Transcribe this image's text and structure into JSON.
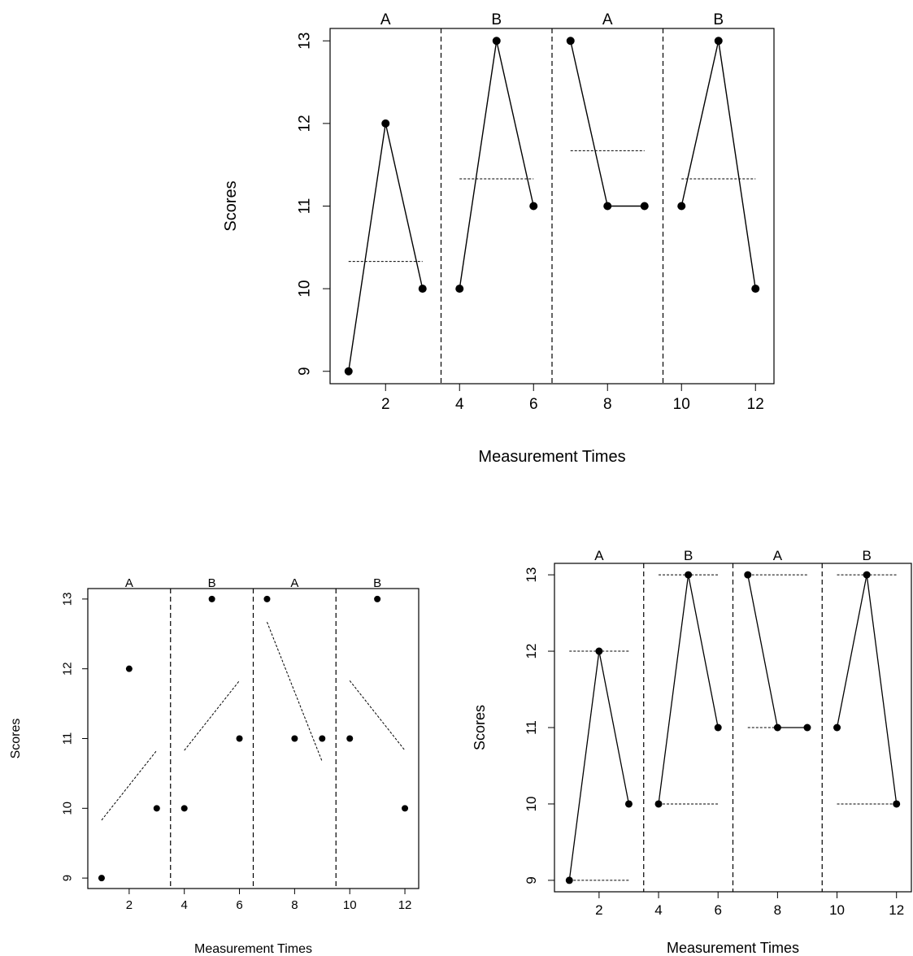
{
  "chart_data": [
    {
      "type": "line",
      "panel": "mean-lines",
      "xlabel": "Measurement Times",
      "ylabel": "Scores",
      "xlim": [
        0.5,
        12.5
      ],
      "ylim": [
        8.85,
        13.15
      ],
      "x_ticks": [
        2,
        4,
        6,
        8,
        10,
        12
      ],
      "y_ticks": [
        9,
        10,
        11,
        12,
        13
      ],
      "phase_labels": [
        "A",
        "B",
        "A",
        "B"
      ],
      "phase_boundaries": [
        3.5,
        6.5,
        9.5
      ],
      "x": [
        1,
        2,
        3,
        4,
        5,
        6,
        7,
        8,
        9,
        10,
        11,
        12
      ],
      "y": [
        9,
        12,
        10,
        10,
        13,
        11,
        13,
        11,
        11,
        11,
        13,
        10
      ],
      "show_lines": true,
      "reference_lines": [
        {
          "x": [
            1,
            3
          ],
          "y": [
            10.33,
            10.33
          ]
        },
        {
          "x": [
            4,
            6
          ],
          "y": [
            11.33,
            11.33
          ]
        },
        {
          "x": [
            7,
            9
          ],
          "y": [
            11.67,
            11.67
          ]
        },
        {
          "x": [
            10,
            12
          ],
          "y": [
            11.33,
            11.33
          ]
        }
      ]
    },
    {
      "type": "scatter",
      "panel": "trend-lines",
      "xlabel": "Measurement Times",
      "ylabel": "Scores",
      "xlim": [
        0.5,
        12.5
      ],
      "ylim": [
        8.85,
        13.15
      ],
      "x_ticks": [
        2,
        4,
        6,
        8,
        10,
        12
      ],
      "y_ticks": [
        9,
        10,
        11,
        12,
        13
      ],
      "phase_labels": [
        "A",
        "B",
        "A",
        "B"
      ],
      "phase_boundaries": [
        3.5,
        6.5,
        9.5
      ],
      "x": [
        1,
        2,
        3,
        4,
        5,
        6,
        7,
        8,
        9,
        10,
        11,
        12
      ],
      "y": [
        9,
        12,
        10,
        10,
        13,
        11,
        13,
        11,
        11,
        11,
        13,
        10
      ],
      "show_lines": false,
      "reference_lines": [
        {
          "x": [
            1,
            3
          ],
          "y": [
            9.83,
            10.83
          ]
        },
        {
          "x": [
            4,
            6
          ],
          "y": [
            10.83,
            11.83
          ]
        },
        {
          "x": [
            7,
            9
          ],
          "y": [
            12.67,
            10.67
          ]
        },
        {
          "x": [
            10,
            12
          ],
          "y": [
            11.83,
            10.83
          ]
        }
      ]
    },
    {
      "type": "line",
      "panel": "range-lines",
      "xlabel": "Measurement Times",
      "ylabel": "Scores",
      "xlim": [
        0.5,
        12.5
      ],
      "ylim": [
        8.85,
        13.15
      ],
      "x_ticks": [
        2,
        4,
        6,
        8,
        10,
        12
      ],
      "y_ticks": [
        9,
        10,
        11,
        12,
        13
      ],
      "phase_labels": [
        "A",
        "B",
        "A",
        "B"
      ],
      "phase_boundaries": [
        3.5,
        6.5,
        9.5
      ],
      "x": [
        1,
        2,
        3,
        4,
        5,
        6,
        7,
        8,
        9,
        10,
        11,
        12
      ],
      "y": [
        9,
        12,
        10,
        10,
        13,
        11,
        13,
        11,
        11,
        11,
        13,
        10
      ],
      "show_lines": true,
      "reference_lines": [
        {
          "x": [
            1,
            3
          ],
          "y": [
            9,
            9
          ]
        },
        {
          "x": [
            1,
            3
          ],
          "y": [
            12,
            12
          ]
        },
        {
          "x": [
            4,
            6
          ],
          "y": [
            10,
            10
          ]
        },
        {
          "x": [
            4,
            6
          ],
          "y": [
            13,
            13
          ]
        },
        {
          "x": [
            7,
            9
          ],
          "y": [
            11,
            11
          ]
        },
        {
          "x": [
            7,
            9
          ],
          "y": [
            13,
            13
          ]
        },
        {
          "x": [
            10,
            12
          ],
          "y": [
            10,
            10
          ]
        },
        {
          "x": [
            10,
            12
          ],
          "y": [
            13,
            13
          ]
        }
      ]
    }
  ]
}
